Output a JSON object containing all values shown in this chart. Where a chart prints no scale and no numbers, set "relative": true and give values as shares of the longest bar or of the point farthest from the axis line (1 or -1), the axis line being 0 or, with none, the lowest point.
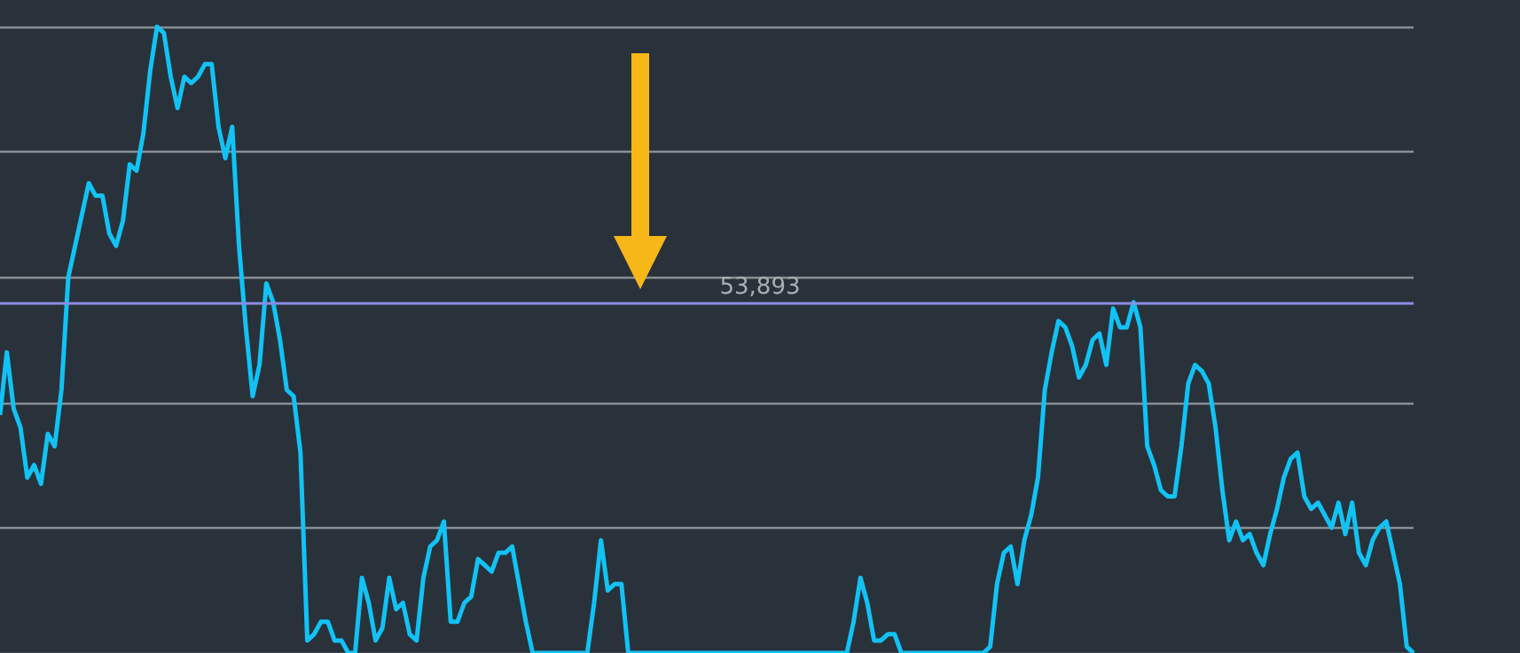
{
  "chart_data": {
    "type": "line",
    "relative": true,
    "grid": "y",
    "line_style": "solid",
    "categories": [
      null,
      null,
      null,
      null,
      null,
      null,
      null,
      null,
      null,
      null,
      null,
      null,
      null,
      null,
      null,
      null,
      null,
      null,
      null,
      null,
      null,
      null,
      null,
      null,
      null,
      null,
      null,
      null,
      null,
      null,
      null,
      null,
      null,
      null,
      null,
      null,
      null,
      null,
      null,
      null,
      null,
      null,
      null,
      null,
      null,
      null,
      null,
      null,
      null,
      null,
      null,
      null,
      null,
      null,
      null,
      null,
      null,
      null,
      null,
      null,
      null,
      null,
      null,
      null,
      null,
      null,
      null,
      null,
      null,
      null,
      null,
      null,
      null,
      null,
      null,
      null,
      null,
      null,
      null,
      null,
      null,
      null,
      null,
      null,
      null,
      null,
      null,
      null,
      null,
      null,
      null,
      null,
      null,
      null,
      null,
      null,
      null,
      null,
      null,
      null,
      null,
      null,
      null,
      null,
      null,
      null,
      null,
      null,
      null,
      null,
      null,
      null,
      null,
      null,
      null,
      null,
      null,
      null,
      null,
      null,
      null,
      null,
      null,
      null,
      null,
      null,
      null,
      null,
      null,
      null,
      null,
      null,
      null,
      null,
      null,
      null,
      null,
      null,
      null,
      null,
      null,
      null,
      null,
      null,
      null,
      null,
      null,
      null,
      null,
      null,
      null,
      null,
      null,
      null,
      null,
      null,
      null,
      null,
      null,
      null,
      null,
      null,
      null,
      null,
      null,
      null,
      null,
      null,
      null,
      null,
      null,
      null,
      null,
      null,
      null,
      null,
      null,
      null,
      null,
      null,
      null,
      null,
      null,
      null,
      null,
      null,
      null,
      null,
      null,
      null,
      null,
      null,
      null,
      null,
      null,
      null,
      null,
      null,
      null,
      null,
      null,
      null,
      null,
      null,
      null,
      null,
      null,
      null
    ],
    "series": [
      {
        "color": "#12c2f5",
        "values": [
          0.38,
          0.48,
          0.39,
          0.36,
          0.28,
          0.3,
          0.27,
          0.35,
          0.33,
          0.42,
          0.6,
          0.65,
          0.7,
          0.75,
          0.73,
          0.73,
          0.67,
          0.65,
          0.69,
          0.78,
          0.77,
          0.83,
          0.93,
          1,
          0.99,
          0.92,
          0.87,
          0.92,
          0.91,
          0.92,
          0.94,
          0.94,
          0.84,
          0.79,
          0.84,
          0.65,
          0.52,
          0.41,
          0.46,
          0.59,
          0.56,
          0.5,
          0.42,
          0.41,
          0.32,
          0.02,
          0.03,
          0.05,
          0.05,
          0.02,
          0.02,
          0,
          0,
          0.12,
          0.08,
          0.02,
          0.04,
          0.12,
          0.07,
          0.08,
          0.03,
          0.02,
          0.12,
          0.17,
          0.18,
          0.21,
          0.05,
          0.05,
          0.08,
          0.09,
          0.15,
          0.14,
          0.13,
          0.16,
          0.16,
          0.17,
          0.11,
          0.05,
          0,
          0,
          0,
          0,
          0,
          0,
          0,
          0,
          0,
          0.08,
          0.18,
          0.1,
          0.11,
          0.11,
          0,
          0,
          0,
          0,
          0,
          0,
          0,
          0,
          0,
          0,
          0,
          0,
          0,
          0,
          0,
          0,
          0,
          0,
          0,
          0,
          0,
          0,
          0,
          0,
          0,
          0,
          0,
          0,
          0,
          0,
          0,
          0,
          0,
          0.05,
          0.12,
          0.08,
          0.02,
          0.02,
          0.03,
          0.03,
          0,
          0,
          0,
          0,
          0,
          0,
          0,
          0,
          0,
          0,
          0,
          0,
          0,
          0.01,
          0.11,
          0.16,
          0.17,
          0.11,
          0.18,
          0.22,
          0.28,
          0.42,
          0.48,
          0.53,
          0.52,
          0.49,
          0.44,
          0.46,
          0.5,
          0.51,
          0.46,
          0.55,
          0.52,
          0.52,
          0.56,
          0.52,
          0.33,
          0.3,
          0.26,
          0.25,
          0.25,
          0.33,
          0.43,
          0.46,
          0.45,
          0.43,
          0.36,
          0.26,
          0.18,
          0.21,
          0.18,
          0.19,
          0.16,
          0.14,
          0.19,
          0.23,
          0.28,
          0.31,
          0.32,
          0.25,
          0.23,
          0.24,
          0.22,
          0.2,
          0.24,
          0.19,
          0.24,
          0.16,
          0.14,
          0.18,
          0.2,
          0.21,
          0.16,
          0.11,
          0.01,
          0
        ]
      }
    ],
    "ref_lines": [
      {
        "axis": "y",
        "value": 0.56,
        "color": "#8c8ce6"
      }
    ],
    "annotations": [
      "53,893"
    ]
  }
}
